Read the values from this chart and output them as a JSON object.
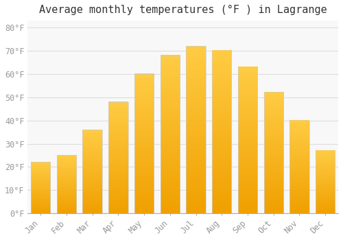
{
  "title": "Average monthly temperatures (°F ) in Lagrange",
  "months": [
    "Jan",
    "Feb",
    "Mar",
    "Apr",
    "May",
    "Jun",
    "Jul",
    "Aug",
    "Sep",
    "Oct",
    "Nov",
    "Dec"
  ],
  "values": [
    22,
    25,
    36,
    48,
    60,
    68,
    72,
    70,
    63,
    52,
    40,
    27
  ],
  "bar_color_light": "#FFCC44",
  "bar_color_dark": "#F0A000",
  "bar_edge_color": "#CCCCCC",
  "background_color": "#FFFFFF",
  "plot_bg_color": "#F8F8F8",
  "grid_color": "#DDDDDD",
  "title_fontsize": 11,
  "tick_fontsize": 8.5,
  "title_color": "#333333",
  "tick_color": "#999999",
  "ylim": [
    0,
    83
  ],
  "yticks": [
    0,
    10,
    20,
    30,
    40,
    50,
    60,
    70,
    80
  ],
  "ytick_labels": [
    "0°F",
    "10°F",
    "20°F",
    "30°F",
    "40°F",
    "50°F",
    "60°F",
    "70°F",
    "80°F"
  ]
}
